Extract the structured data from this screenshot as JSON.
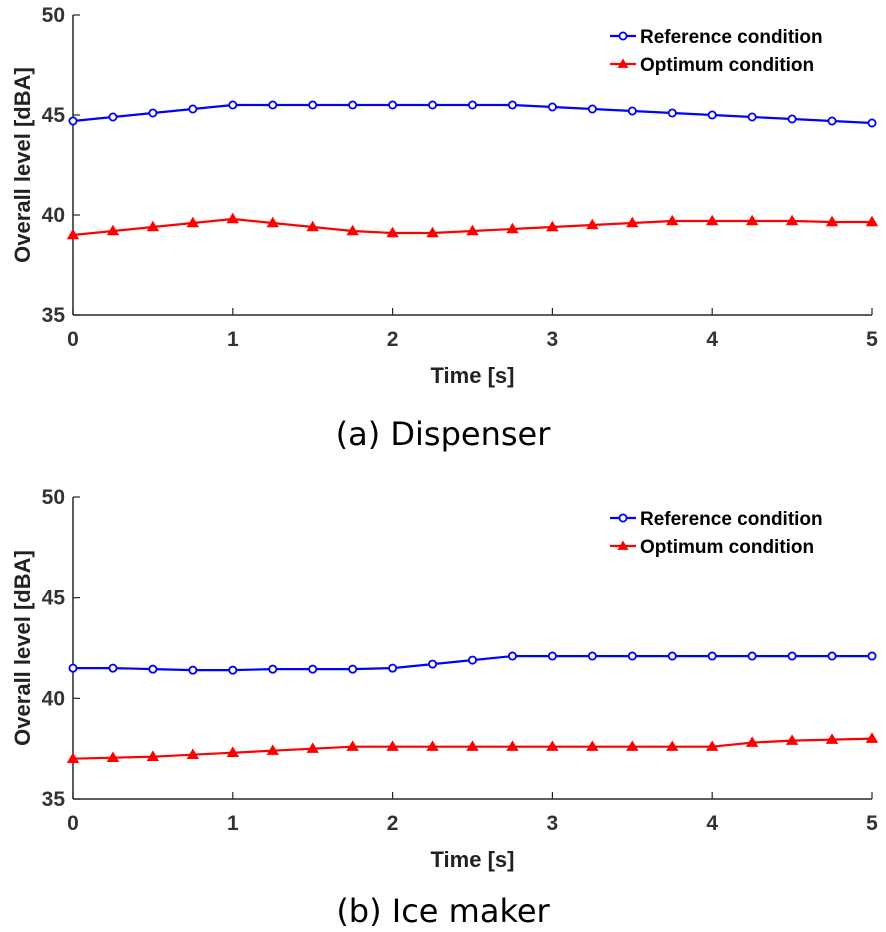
{
  "chart_data": [
    {
      "type": "line",
      "caption": "(a) Dispenser",
      "xlabel": "Time [s]",
      "ylabel": "Overall level [dBA]",
      "xlim": [
        0,
        5
      ],
      "ylim": [
        35,
        50
      ],
      "xticks": [
        "0",
        "1",
        "2",
        "3",
        "4",
        "5"
      ],
      "yticks": [
        "35",
        "40",
        "45",
        "50"
      ],
      "legend_position": "top-right",
      "x": [
        0,
        0.25,
        0.5,
        0.75,
        1,
        1.25,
        1.5,
        1.75,
        2,
        2.25,
        2.5,
        2.75,
        3,
        3.25,
        3.5,
        3.75,
        4,
        4.25,
        4.5,
        4.75,
        5
      ],
      "series": [
        {
          "name": "Reference condition",
          "color": "#0000ff",
          "marker": "circle",
          "values": [
            44.7,
            44.9,
            45.1,
            45.3,
            45.5,
            45.5,
            45.5,
            45.5,
            45.5,
            45.5,
            45.5,
            45.5,
            45.4,
            45.3,
            45.2,
            45.1,
            45.0,
            44.9,
            44.8,
            44.7,
            44.6
          ]
        },
        {
          "name": "Optimum condition",
          "color": "#ff0000",
          "marker": "triangle",
          "values": [
            39.0,
            39.2,
            39.4,
            39.6,
            39.8,
            39.6,
            39.4,
            39.2,
            39.1,
            39.1,
            39.2,
            39.3,
            39.4,
            39.5,
            39.6,
            39.7,
            39.7,
            39.7,
            39.7,
            39.65,
            39.65
          ]
        }
      ]
    },
    {
      "type": "line",
      "caption": "(b) Ice maker",
      "xlabel": "Time [s]",
      "ylabel": "Overall level [dBA]",
      "xlim": [
        0,
        5
      ],
      "ylim": [
        35,
        50
      ],
      "xticks": [
        "0",
        "1",
        "2",
        "3",
        "4",
        "5"
      ],
      "yticks": [
        "35",
        "40",
        "45",
        "50"
      ],
      "legend_position": "top-right",
      "x": [
        0,
        0.25,
        0.5,
        0.75,
        1,
        1.25,
        1.5,
        1.75,
        2,
        2.25,
        2.5,
        2.75,
        3,
        3.25,
        3.5,
        3.75,
        4,
        4.25,
        4.5,
        4.75,
        5
      ],
      "series": [
        {
          "name": "Reference condition",
          "color": "#0000ff",
          "marker": "circle",
          "values": [
            41.5,
            41.5,
            41.45,
            41.4,
            41.4,
            41.45,
            41.45,
            41.45,
            41.5,
            41.7,
            41.9,
            42.1,
            42.1,
            42.1,
            42.1,
            42.1,
            42.1,
            42.1,
            42.1,
            42.1,
            42.1
          ]
        },
        {
          "name": "Optimum condition",
          "color": "#ff0000",
          "marker": "triangle",
          "values": [
            37.0,
            37.05,
            37.1,
            37.2,
            37.3,
            37.4,
            37.5,
            37.6,
            37.6,
            37.6,
            37.6,
            37.6,
            37.6,
            37.6,
            37.6,
            37.6,
            37.6,
            37.8,
            37.9,
            37.95,
            38.0
          ]
        }
      ]
    }
  ]
}
